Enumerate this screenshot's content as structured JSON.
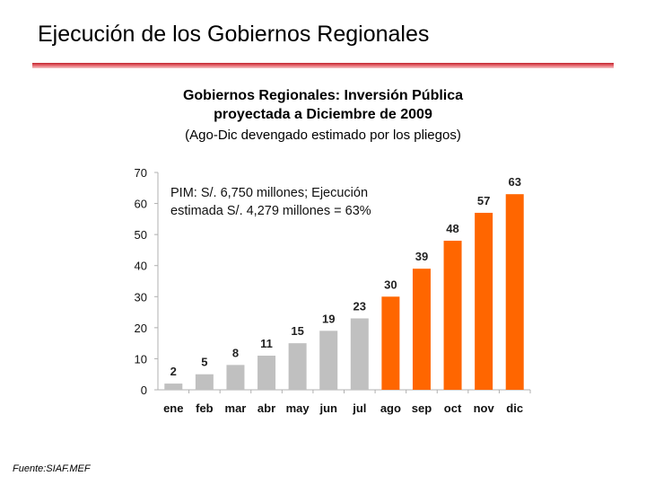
{
  "slide": {
    "title": "Ejecución de los Gobiernos Regionales",
    "source": "Fuente:SIAF.MEF",
    "accent_color": "#c0262e"
  },
  "chart_data": {
    "type": "bar",
    "title_line1": "Gobiernos Regionales: Inversión Pública",
    "title_line2": "proyectada a Diciembre de 2009",
    "subtitle": "(Ago-Dic devengado estimado por los pliegos)",
    "annotation_line1": "PIM: S/. 6,750 millones; Ejecución",
    "annotation_line2": "estimada S/. 4,279 millones = 63%",
    "categories": [
      "ene",
      "feb",
      "mar",
      "abr",
      "may",
      "jun",
      "jul",
      "ago",
      "sep",
      "oct",
      "nov",
      "dic"
    ],
    "values": [
      2,
      5,
      8,
      11,
      15,
      19,
      23,
      30,
      39,
      48,
      57,
      63
    ],
    "bar_groups": [
      "executed",
      "executed",
      "executed",
      "executed",
      "executed",
      "executed",
      "executed",
      "estimated",
      "estimated",
      "estimated",
      "estimated",
      "estimated"
    ],
    "colors": {
      "executed": "#c0c0c0",
      "estimated": "#ff6600",
      "gridline": "#b0b0b0"
    },
    "yticks": [
      0,
      10,
      20,
      30,
      40,
      50,
      60,
      70
    ],
    "ylim": [
      0,
      70
    ],
    "xlabel": "",
    "ylabel": "",
    "legend": "none",
    "grid": false
  }
}
